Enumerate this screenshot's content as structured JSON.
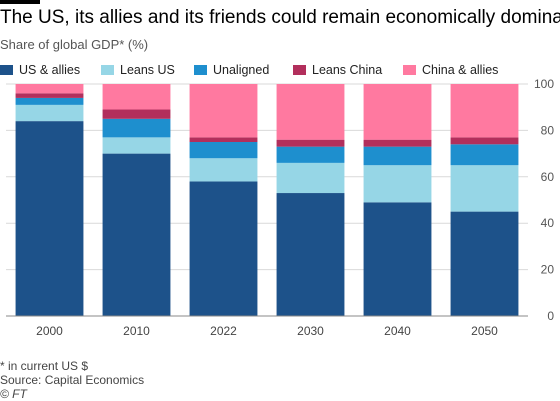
{
  "title": "The US, its allies and its friends could remain economically dominant",
  "subtitle": "Share of global GDP* (%)",
  "footnote": "* in current US $",
  "source": "Source: Capital Economics",
  "credit": "© FT",
  "colors": {
    "US & allies": "#1d528a",
    "Leans US": "#96d6e6",
    "Unaligned": "#1e8fce",
    "Leans China": "#b22f5c",
    "China & allies": "#ff79a0",
    "grid": "#d9d9d9"
  },
  "chart_data": {
    "type": "bar",
    "stacked": true,
    "categories": [
      "2000",
      "2010",
      "2022",
      "2030",
      "2040",
      "2050"
    ],
    "series": [
      {
        "name": "US & allies",
        "values": [
          84,
          70,
          58,
          53,
          49,
          45
        ]
      },
      {
        "name": "Leans US",
        "values": [
          7,
          7,
          10,
          13,
          16,
          20
        ]
      },
      {
        "name": "Unaligned",
        "values": [
          3,
          8,
          7,
          7,
          8,
          9
        ]
      },
      {
        "name": "Leans China",
        "values": [
          2,
          4,
          2,
          3,
          3,
          3
        ]
      },
      {
        "name": "China & allies",
        "values": [
          4,
          11,
          23,
          24,
          24,
          23
        ]
      }
    ],
    "ylim": [
      0,
      100
    ],
    "yticks": [
      0,
      20,
      40,
      60,
      80,
      100
    ],
    "y_axis_side": "right",
    "grid": true,
    "legend_position": "top"
  }
}
